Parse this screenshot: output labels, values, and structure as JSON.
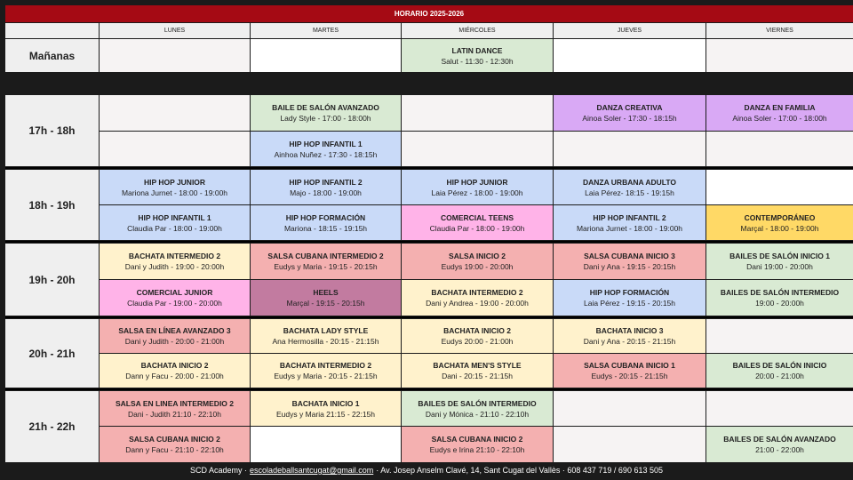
{
  "title": "HORARIO 2025-2026",
  "days": [
    "LUNES",
    "MARTES",
    "MIÉRCOLES",
    "JUEVES",
    "VIERNES"
  ],
  "colors": {
    "empty": "#f6f3f3",
    "white": "#ffffff",
    "green": "#d9ead3",
    "purple": "#d9a9f5",
    "blue": "#c9daf8",
    "pink": "#ffb3e8",
    "yellow": "#ffd966",
    "cream": "#fff2cc",
    "salmon": "#f4b0b0",
    "mauve": "#c27ba0"
  },
  "blocks": [
    {
      "time": "Mañanas",
      "rows": [
        [
          {
            "c": "empty"
          },
          {
            "c": "white"
          },
          {
            "c": "green",
            "name": "LATIN DANCE",
            "info": "Salut - 11:30 - 12:30h"
          },
          {
            "c": "white"
          },
          {
            "c": "empty"
          }
        ]
      ]
    },
    {
      "time": "17h - 18h",
      "rows": [
        [
          {
            "c": "empty"
          },
          {
            "c": "green",
            "name": "BAILE DE SALÓN AVANZADO",
            "info": "Lady Style - 17:00 - 18:00h"
          },
          {
            "c": "empty"
          },
          {
            "c": "purple",
            "name": "DANZA CREATIVA",
            "info": "Ainoa Soler - 17:30 - 18:15h"
          },
          {
            "c": "purple",
            "name": "DANZA EN FAMILIA",
            "info": "Ainoa Soler - 17:00 - 18:00h"
          }
        ],
        [
          {
            "c": "empty"
          },
          {
            "c": "blue",
            "name": "HIP HOP INFANTIL 1",
            "info": "Ainhoa Nuñez - 17:30 - 18:15h"
          },
          {
            "c": "empty"
          },
          {
            "c": "empty"
          },
          {
            "c": "empty"
          }
        ]
      ]
    },
    {
      "time": "18h - 19h",
      "rows": [
        [
          {
            "c": "blue",
            "name": "HIP HOP JUNIOR",
            "info": "Mariona Jurnet - 18:00 - 19:00h"
          },
          {
            "c": "blue",
            "name": "HIP HOP INFANTIL 2",
            "info": "Majo - 18:00 - 19:00h"
          },
          {
            "c": "blue",
            "name": "HIP HOP JUNIOR",
            "info": "Laia Pérez - 18:00 - 19:00h"
          },
          {
            "c": "blue",
            "name": "DANZA URBANA ADULTO",
            "info": "Laia Pérez- 18:15 - 19:15h"
          },
          {
            "c": "white"
          }
        ],
        [
          {
            "c": "blue",
            "name": "HIP HOP INFANTIL 1",
            "info": "Claudia Par - 18:00 - 19:00h"
          },
          {
            "c": "blue",
            "name": "HIP HOP FORMACIÓN",
            "info": "Mariona - 18:15 - 19:15h"
          },
          {
            "c": "pink",
            "name": "COMERCIAL TEENS",
            "info": "Claudia Par - 18:00 - 19:00h"
          },
          {
            "c": "blue",
            "name": "HIP HOP INFANTIL 2",
            "info": "Mariona Jurnet - 18:00 - 19:00h"
          },
          {
            "c": "yellow",
            "name": "CONTEMPORÁNEO",
            "info": "Marçal - 18:00 - 19:00h"
          }
        ]
      ]
    },
    {
      "time": "19h - 20h",
      "rows": [
        [
          {
            "c": "cream",
            "name": "BACHATA INTERMEDIO 2",
            "info": "Dani y Judith - 19:00 - 20:00h"
          },
          {
            "c": "salmon",
            "name": "SALSA CUBANA INTERMEDIO 2",
            "info": "Eudys y Maria - 19:15 - 20:15h"
          },
          {
            "c": "salmon",
            "name": "SALSA INICIO 2",
            "info": "Eudys 19:00 - 20:00h"
          },
          {
            "c": "salmon",
            "name": "SALSA CUBANA INICIO 3",
            "info": "Dani y Ana - 19:15 - 20:15h"
          },
          {
            "c": "green",
            "name": "BAILES DE SALÓN INICIO 1",
            "info": "Dani 19:00 - 20:00h"
          }
        ],
        [
          {
            "c": "pink",
            "name": "COMERCIAL JUNIOR",
            "info": "Claudia Par - 19:00 - 20:00h"
          },
          {
            "c": "mauve",
            "name": "HEELS",
            "info": "Marçal - 19:15 - 20:15h"
          },
          {
            "c": "cream",
            "name": "BACHATA INTERMEDIO 2",
            "info": "Dani y Andrea - 19:00 - 20:00h"
          },
          {
            "c": "blue",
            "name": "HIP HOP FORMACIÓN",
            "info": "Laia Pérez - 19:15 - 20:15h"
          },
          {
            "c": "green",
            "name": "BAILES DE SALÓN INTERMEDIO",
            "info": "19:00 - 20:00h"
          }
        ]
      ]
    },
    {
      "time": "20h - 21h",
      "rows": [
        [
          {
            "c": "salmon",
            "name": "SALSA EN LÍNEA AVANZADO 3",
            "info": "Dani y Judith - 20:00 - 21:00h"
          },
          {
            "c": "cream",
            "name": "BACHATA LADY STYLE",
            "info": "Ana Hermosilla - 20:15 - 21:15h"
          },
          {
            "c": "cream",
            "name": "BACHATA INICIO 2",
            "info": "Eudys  20:00 - 21:00h"
          },
          {
            "c": "cream",
            "name": "BACHATA INICIO 3",
            "info": "Dani y Ana - 20:15 - 21:15h"
          },
          {
            "c": "empty"
          }
        ],
        [
          {
            "c": "cream",
            "name": "BACHATA INICIO 2",
            "info": "Dann y Facu - 20:00 - 21:00h"
          },
          {
            "c": "cream",
            "name": "BACHATA INTERMEDIO 2",
            "info": "Eudys y Maria - 20:15 - 21:15h"
          },
          {
            "c": "cream",
            "name": "BACHATA MEN'S STYLE",
            "info": "Dani - 20:15 - 21:15h"
          },
          {
            "c": "salmon",
            "name": "SALSA CUBANA INICIO 1",
            "info": "Eudys - 20:15 - 21:15h"
          },
          {
            "c": "green",
            "name": "BAILES DE SALÓN INICIO",
            "info": "20:00 - 21:00h"
          }
        ]
      ]
    },
    {
      "time": "21h - 22h",
      "rows": [
        [
          {
            "c": "salmon",
            "name": "SALSA EN LINEA INTERMEDIO 2",
            "info": "Dani - Judith 21:10 - 22:10h"
          },
          {
            "c": "cream",
            "name": "BACHATA INICIO 1",
            "info": "Eudys y Maria  21:15 - 22:15h"
          },
          {
            "c": "green",
            "name": "BAILES DE SALÓN INTERMEDIO",
            "info": "Dani y Mónica - 21:10 - 22:10h"
          },
          {
            "c": "empty"
          },
          {
            "c": "empty"
          }
        ],
        [
          {
            "c": "salmon",
            "name": "SALSA CUBANA INICIO 2",
            "info": "Dann y Facu - 21:10 - 22:10h"
          },
          {
            "c": "white"
          },
          {
            "c": "salmon",
            "name": "SALSA CUBANA INICIO 2",
            "info": "Eudys e Irina 21:10 - 22:10h"
          },
          {
            "c": "empty"
          },
          {
            "c": "green",
            "name": "BAILES DE SALÓN AVANZADO",
            "info": "21:00 - 22:00h"
          }
        ]
      ]
    }
  ],
  "footer": {
    "prefix": "SCD Academy ·",
    "email": "escoladeballsantcugat@gmail.com",
    "suffix": "· Av. Josep Anselm Clavé, 14, Sant Cugat del Vallès · 608 437 719 / 690 613 505"
  }
}
